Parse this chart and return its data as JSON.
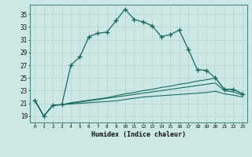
{
  "title": "",
  "xlabel": "Humidex (Indice chaleur)",
  "background_color": "#cce8e4",
  "grid_color": "#b8d8d4",
  "line_color": "#1a6b60",
  "xlim": [
    -0.5,
    23.5
  ],
  "ylim": [
    18,
    36.5
  ],
  "xticks": [
    0,
    1,
    2,
    3,
    4,
    5,
    6,
    7,
    8,
    9,
    10,
    11,
    12,
    13,
    14,
    15,
    16,
    17,
    18,
    19,
    20,
    21,
    22,
    23
  ],
  "yticks": [
    19,
    21,
    23,
    25,
    27,
    29,
    31,
    33,
    35
  ],
  "series0": [
    21.5,
    19.0,
    20.7,
    20.8,
    27.0,
    28.3,
    31.5,
    32.0,
    32.2,
    34.0,
    35.8,
    34.2,
    33.8,
    33.2,
    31.5,
    31.8,
    32.5,
    29.5,
    26.3,
    26.2,
    25.0,
    23.2,
    23.2,
    22.5
  ],
  "series1": [
    21.5,
    19.0,
    20.7,
    20.8,
    21.1,
    21.3,
    21.5,
    21.7,
    21.9,
    22.2,
    22.5,
    22.7,
    23.0,
    23.2,
    23.5,
    23.7,
    24.0,
    24.2,
    24.5,
    24.7,
    25.0,
    23.2,
    23.2,
    22.5
  ],
  "series2": [
    21.5,
    19.0,
    20.7,
    20.8,
    21.0,
    21.2,
    21.4,
    21.6,
    21.8,
    22.0,
    22.2,
    22.4,
    22.6,
    22.8,
    23.0,
    23.2,
    23.4,
    23.6,
    23.8,
    24.0,
    24.2,
    23.0,
    22.8,
    22.3
  ],
  "series3": [
    21.5,
    19.0,
    20.7,
    20.8,
    20.9,
    21.0,
    21.1,
    21.2,
    21.3,
    21.4,
    21.6,
    21.8,
    22.0,
    22.1,
    22.2,
    22.3,
    22.4,
    22.5,
    22.6,
    22.7,
    22.9,
    22.5,
    22.3,
    22.0
  ]
}
